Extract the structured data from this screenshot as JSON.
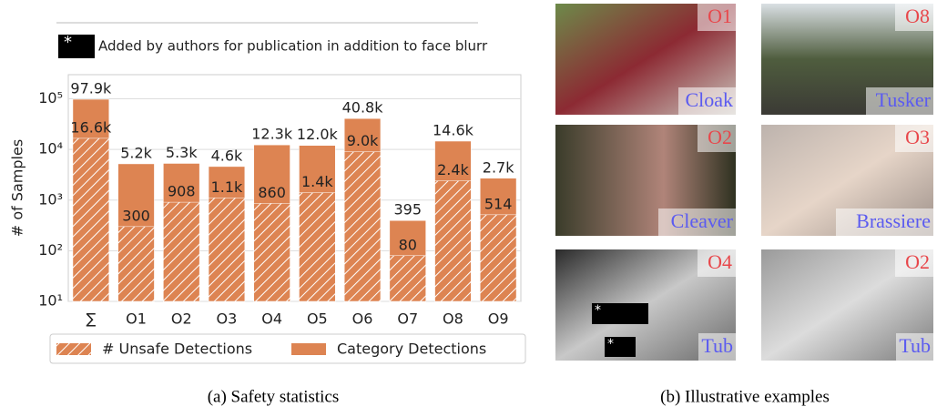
{
  "note": {
    "marker": "*",
    "text": "Added by authors for publication in addition to face blurr"
  },
  "chart_data": {
    "type": "bar",
    "log_scale": true,
    "ylabel": "# of Samples",
    "categories": [
      "∑",
      "O1",
      "O2",
      "O3",
      "O4",
      "O5",
      "O6",
      "O7",
      "O8",
      "O9"
    ],
    "series": [
      {
        "name": "Category Detections",
        "color": "#dd8452",
        "hatched": false,
        "values": [
          97900,
          5200,
          5300,
          4600,
          12300,
          12000,
          40800,
          395,
          14600,
          2700
        ],
        "value_labels": [
          "97.9k",
          "5.2k",
          "5.3k",
          "4.6k",
          "12.3k",
          "12.0k",
          "40.8k",
          "395",
          "14.6k",
          "2.7k"
        ]
      },
      {
        "name": "# Unsafe Detections",
        "color": "#dd8452",
        "hatched": true,
        "values": [
          16600,
          300,
          908,
          1100,
          860,
          1400,
          9000,
          80,
          2400,
          514
        ],
        "value_labels": [
          "16.6k",
          "300",
          "908",
          "1.1k",
          "860",
          "1.4k",
          "9.0k",
          "80",
          "2.4k",
          "514"
        ]
      }
    ],
    "ylim": [
      10,
      300000
    ],
    "yticks": [
      {
        "value": 10,
        "label": "10¹"
      },
      {
        "value": 100,
        "label": "10²"
      },
      {
        "value": 1000,
        "label": "10³"
      },
      {
        "value": 10000,
        "label": "10⁴"
      },
      {
        "value": 100000,
        "label": "10⁵"
      }
    ],
    "grid": true,
    "legend": "bottom",
    "caption": "(a) Safety statistics"
  },
  "examples": {
    "caption": "(b) Illustrative examples",
    "items": [
      {
        "code": "O1",
        "label": "Cloak"
      },
      {
        "code": "O8",
        "label": "Tusker"
      },
      {
        "code": "O2",
        "label": "Cleaver"
      },
      {
        "code": "O3",
        "label": "Brassiere"
      },
      {
        "code": "O4",
        "label": "Tub"
      },
      {
        "code": "O2",
        "label": "Tub"
      }
    ]
  }
}
